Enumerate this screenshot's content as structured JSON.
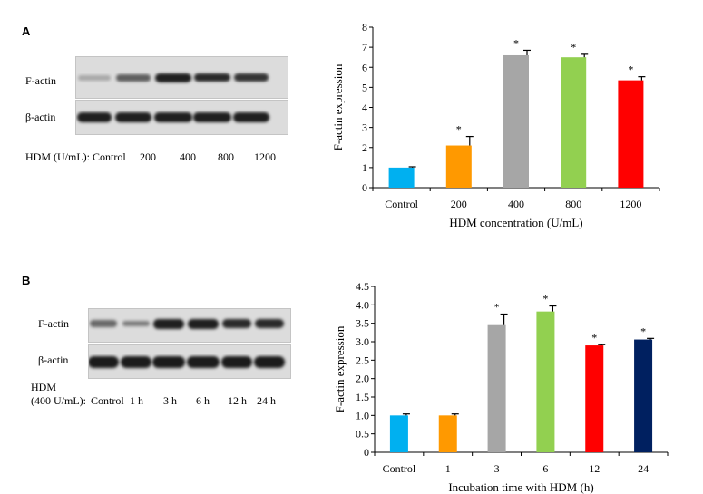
{
  "panels": {
    "a": {
      "label": "A",
      "blot": {
        "row_labels": [
          "F-actin",
          "β-actin"
        ],
        "lane_caption": "HDM (U/mL):",
        "lanes": [
          "Control",
          "200",
          "400",
          "800",
          "1200"
        ]
      }
    },
    "b": {
      "label": "B",
      "blot": {
        "row_labels": [
          "F-actin",
          "β-actin"
        ],
        "caption_line1": "HDM",
        "lane_caption": "(400 U/mL):",
        "lanes": [
          "Control",
          "1 h",
          "3 h",
          "6 h",
          "12 h",
          "24 h"
        ]
      }
    }
  },
  "chart_data": [
    {
      "type": "bar",
      "panel": "A",
      "categories": [
        "Control",
        "200",
        "400",
        "800",
        "1200"
      ],
      "values": [
        1.0,
        2.1,
        6.6,
        6.5,
        5.35
      ],
      "errors": [
        0.04,
        0.45,
        0.25,
        0.15,
        0.18
      ],
      "significance": [
        "",
        "*",
        "*",
        "*",
        "*"
      ],
      "colors": [
        "#00b0f0",
        "#ff9900",
        "#a6a6a6",
        "#92d050",
        "#ff0000"
      ],
      "xlabel": "HDM concentration (U/mL)",
      "ylabel": "F-actin expression",
      "ylim": [
        0,
        8
      ],
      "yticks": [
        "0",
        "1",
        "2",
        "3",
        "4",
        "5",
        "6",
        "7",
        "8"
      ]
    },
    {
      "type": "bar",
      "panel": "B",
      "categories": [
        "Control",
        "1",
        "3",
        "6",
        "12",
        "24"
      ],
      "values": [
        1.0,
        1.0,
        3.45,
        3.82,
        2.9,
        3.06
      ],
      "errors": [
        0.04,
        0.04,
        0.3,
        0.15,
        0.02,
        0.03
      ],
      "significance": [
        "",
        "",
        "*",
        "*",
        "*",
        "*"
      ],
      "colors": [
        "#00b0f0",
        "#ff9900",
        "#a6a6a6",
        "#92d050",
        "#ff0000",
        "#002060"
      ],
      "xlabel": "Incubation time with HDM (h)",
      "ylabel": "F-actin expression",
      "ylim": [
        0,
        4.5
      ],
      "yticks": [
        "0",
        "0.5",
        "1.0",
        "1.5",
        "2.0",
        "2.5",
        "3.0",
        "3.5",
        "4.0",
        "4.5"
      ]
    }
  ]
}
